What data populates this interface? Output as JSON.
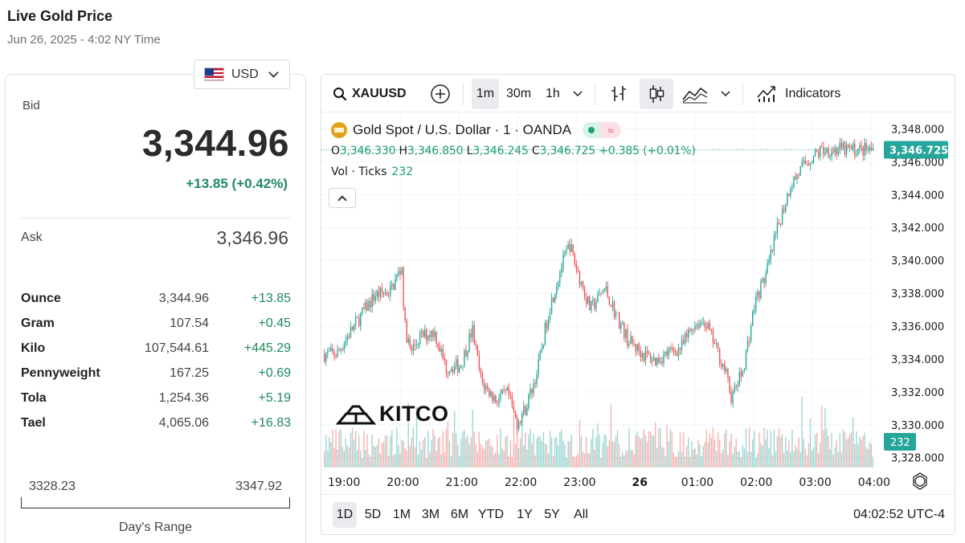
{
  "header": {
    "title": "Live Gold Price",
    "subtitle": "Jun 26, 2025 - 4:02 NY Time"
  },
  "currency": {
    "selected": "USD",
    "flag_icon": "us-flag-icon"
  },
  "quote": {
    "bid_label": "Bid",
    "bid": "3,344.96",
    "change": "+13.85 (+0.42%)",
    "ask_label": "Ask",
    "ask": "3,346.96"
  },
  "units": [
    {
      "name": "Ounce",
      "price": "3,344.96",
      "change": "+13.85"
    },
    {
      "name": "Gram",
      "price": "107.54",
      "change": "+0.45"
    },
    {
      "name": "Kilo",
      "price": "107,544.61",
      "change": "+445.29"
    },
    {
      "name": "Pennyweight",
      "price": "167.25",
      "change": "+0.69"
    },
    {
      "name": "Tola",
      "price": "1,254.36",
      "change": "+5.19"
    },
    {
      "name": "Tael",
      "price": "4,065.06",
      "change": "+16.83"
    }
  ],
  "day_range": {
    "low": "3328.23",
    "high": "3347.92",
    "label": "Day's Range"
  },
  "chart": {
    "toolbar": {
      "symbol": "XAUUSD",
      "intervals": [
        "1m",
        "30m",
        "1h"
      ],
      "active_interval": "1m",
      "indicators_label": "Indicators"
    },
    "legend": {
      "title": "Gold Spot / U.S. Dollar · 1 · OANDA",
      "o_label": "O",
      "o": "3,346.330",
      "h_label": "H",
      "h": "3,346.850",
      "l_label": "L",
      "l": "3,346.245",
      "c_label": "C",
      "c": "3,346.725",
      "change": "+0.385 (+0.01%)",
      "vol_label": "Vol · Ticks",
      "vol": "232"
    },
    "watermark": "KITCO",
    "ranges": [
      "1D",
      "5D",
      "1M",
      "3M",
      "6M",
      "YTD",
      "1Y",
      "5Y",
      "All"
    ],
    "active_range": "1D",
    "clock": "04:02:52 UTC-4",
    "up_color": "#26a69a",
    "down_color": "#ef5350"
  },
  "chart_data": {
    "type": "candlestick",
    "symbol": "XAUUSD",
    "interval": "1m",
    "price_axis": [
      "3,348.000",
      "3,346.000",
      "3,344.000",
      "3,342.000",
      "3,340.000",
      "3,338.000",
      "3,336.000",
      "3,334.000",
      "3,332.000",
      "3,330.000",
      "3,328.000"
    ],
    "ylim": [
      3327.4,
      3349.0
    ],
    "time_axis": [
      "19:00",
      "20:00",
      "21:00",
      "22:00",
      "23:00",
      "26",
      "01:00",
      "02:00",
      "03:00",
      "04:00"
    ],
    "last_price": "3,346.725",
    "last_volume": "232",
    "close_path": [
      {
        "t": -0.1,
        "p": 3334.3
      },
      {
        "t": 0.1,
        "p": 3335.5
      },
      {
        "t": 0.3,
        "p": 3336.6
      },
      {
        "t": 0.55,
        "p": 3337.9
      },
      {
        "t": 0.8,
        "p": 3338.1
      },
      {
        "t": 1.0,
        "p": 3339.6
      },
      {
        "t": 1.05,
        "p": 3336.0
      },
      {
        "t": 1.15,
        "p": 3334.4
      },
      {
        "t": 1.3,
        "p": 3335.3
      },
      {
        "t": 1.55,
        "p": 3335.7
      },
      {
        "t": 1.75,
        "p": 3333.5
      },
      {
        "t": 2.0,
        "p": 3333.6
      },
      {
        "t": 2.2,
        "p": 3335.8
      },
      {
        "t": 2.35,
        "p": 3332.6
      },
      {
        "t": 2.6,
        "p": 3331.5
      },
      {
        "t": 2.8,
        "p": 3331.9
      },
      {
        "t": 2.95,
        "p": 3330.1
      },
      {
        "t": 3.1,
        "p": 3331.0
      },
      {
        "t": 3.3,
        "p": 3333.2
      },
      {
        "t": 3.5,
        "p": 3337.0
      },
      {
        "t": 3.7,
        "p": 3339.5
      },
      {
        "t": 3.85,
        "p": 3341.0
      },
      {
        "t": 3.95,
        "p": 3339.7
      },
      {
        "t": 4.2,
        "p": 3337.0
      },
      {
        "t": 4.45,
        "p": 3338.3
      },
      {
        "t": 4.65,
        "p": 3336.6
      },
      {
        "t": 4.85,
        "p": 3335.1
      },
      {
        "t": 5.1,
        "p": 3334.3
      },
      {
        "t": 5.3,
        "p": 3333.9
      },
      {
        "t": 5.5,
        "p": 3334.3
      },
      {
        "t": 5.75,
        "p": 3334.7
      },
      {
        "t": 5.95,
        "p": 3336.1
      },
      {
        "t": 6.15,
        "p": 3336.3
      },
      {
        "t": 6.3,
        "p": 3335.0
      },
      {
        "t": 6.5,
        "p": 3333.2
      },
      {
        "t": 6.6,
        "p": 3331.6
      },
      {
        "t": 6.8,
        "p": 3333.4
      },
      {
        "t": 7.0,
        "p": 3337.5
      },
      {
        "t": 7.2,
        "p": 3339.3
      },
      {
        "t": 7.4,
        "p": 3342.2
      },
      {
        "t": 7.6,
        "p": 3344.6
      },
      {
        "t": 7.85,
        "p": 3345.9
      },
      {
        "t": 8.05,
        "p": 3346.5
      },
      {
        "t": 8.15,
        "p": 3346.73
      }
    ]
  }
}
